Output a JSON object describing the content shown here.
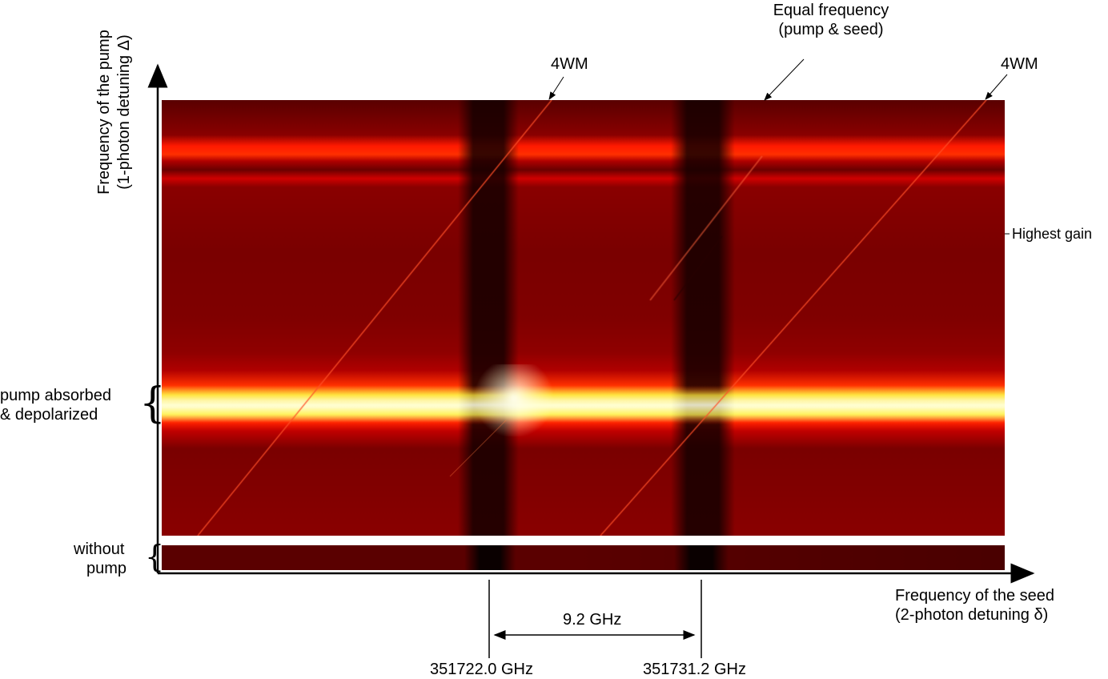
{
  "axes": {
    "y_label_line1": "Frequency of the pump",
    "y_label_line2": "(1-photon detuning Δ)",
    "x_label_line1": "Frequency of the seed",
    "x_label_line2": "(2-photon detuning δ)"
  },
  "annotations": {
    "fwm_left": "4WM",
    "fwm_right": "4WM",
    "equal_line1": "Equal frequency",
    "equal_line2": "(pump & seed)",
    "highest_gain": "Highest gain",
    "pump_absorbed_line1": "pump absorbed",
    "pump_absorbed_line2": "& depolarized",
    "without_pump_line1": "without",
    "without_pump_line2": "pump",
    "separation": "9.2 GHz",
    "freq_left": "351722.0 GHz",
    "freq_right": "351731.2 GHz"
  },
  "colors": {
    "dark": "#3a0000",
    "base": "#7a0000",
    "mid": "#b40000",
    "red": "#e61000",
    "orange": "#ff8c00",
    "yellow": "#ffff40",
    "white": "#ffffe8"
  }
}
